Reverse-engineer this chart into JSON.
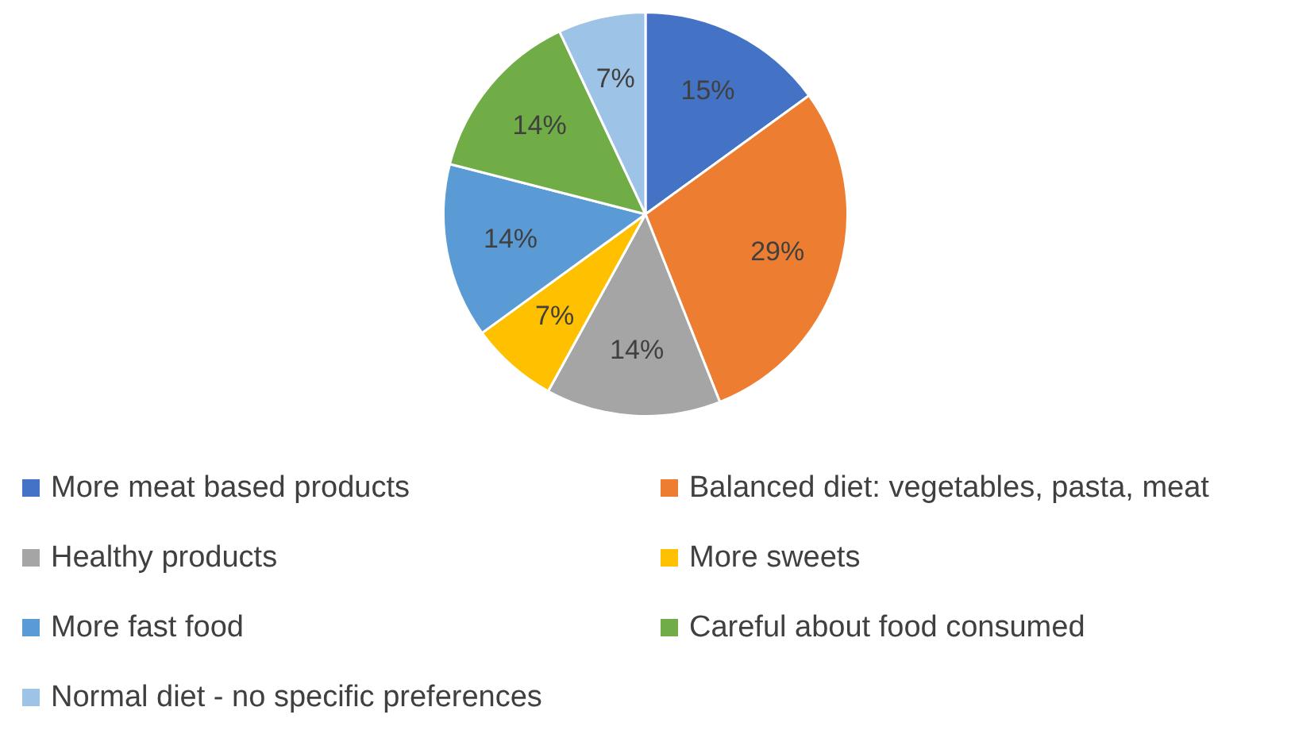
{
  "chart_data": {
    "type": "pie",
    "categories": [
      "More meat based products",
      "Balanced diet: vegetables, pasta, meat",
      "Healthy products",
      "More sweets",
      "More fast food",
      "Careful about food consumed",
      "Normal diet - no specific preferences"
    ],
    "values": [
      15,
      29,
      14,
      7,
      14,
      14,
      7
    ],
    "colors": [
      "#4472c4",
      "#ed7d31",
      "#a5a5a5",
      "#ffc000",
      "#5b9bd5",
      "#70ad47",
      "#9dc3e6"
    ],
    "value_labels": [
      "15%",
      "29%",
      "14%",
      "7%",
      "14%",
      "14%",
      "7%"
    ],
    "legend": "bottom"
  }
}
